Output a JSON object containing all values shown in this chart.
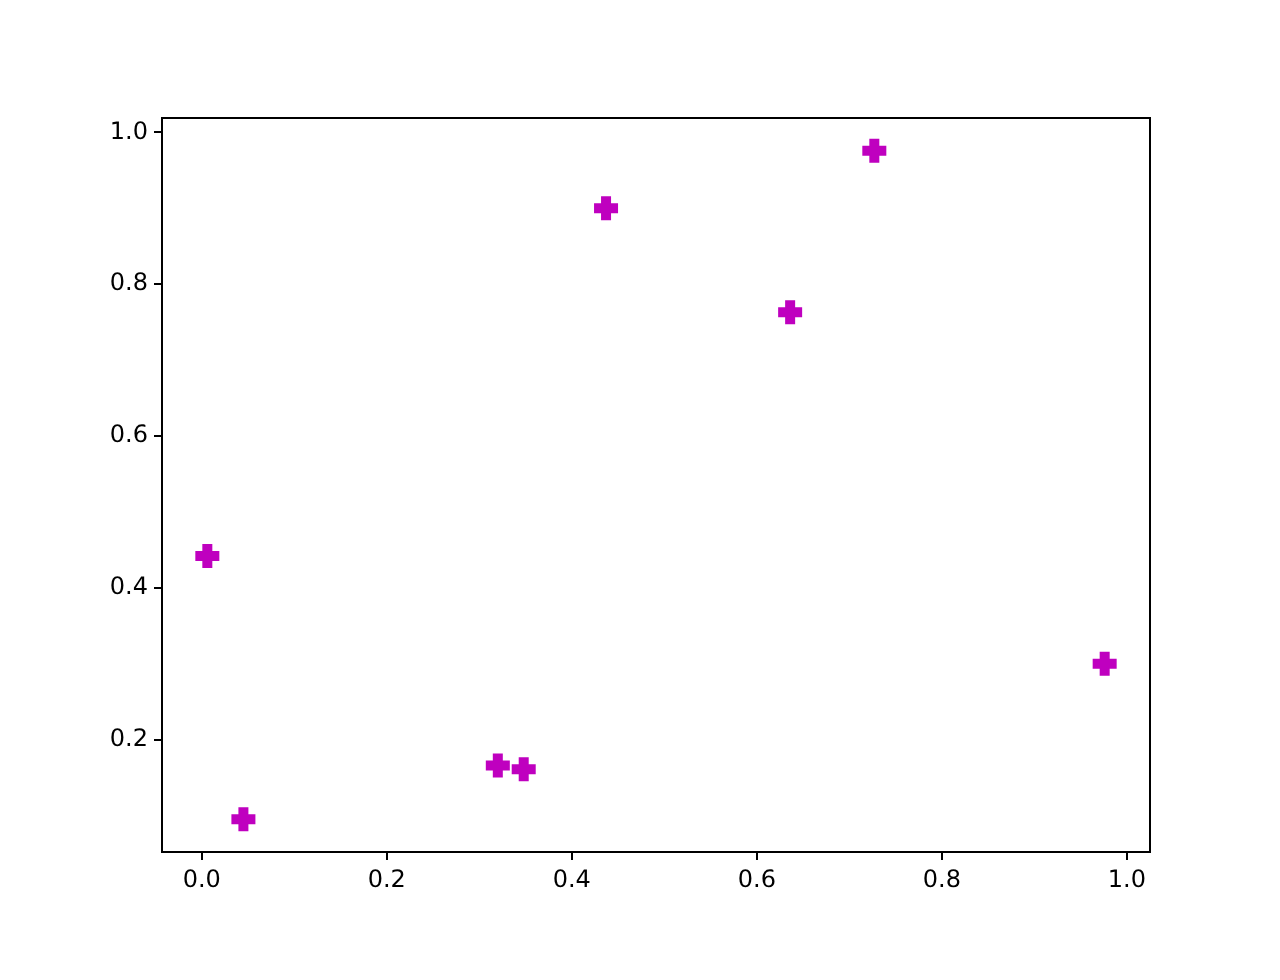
{
  "chart_data": {
    "type": "scatter",
    "x": [
      0.006,
      0.045,
      0.32,
      0.348,
      0.437,
      0.636,
      0.727,
      0.976
    ],
    "series": [
      {
        "color": "#bf00bf",
        "values": [
          0.442,
          0.095,
          0.166,
          0.161,
          0.9,
          0.763,
          0.976,
          0.3
        ]
      }
    ],
    "xlim": [
      -0.043,
      1.025
    ],
    "ylim": [
      0.052,
      1.019
    ],
    "xticks": [
      {
        "value": 0,
        "label": "0.0"
      },
      0.2,
      0.4,
      0.6,
      0.8,
      {
        "value": 1,
        "label": "1.0"
      }
    ],
    "yticks": [
      0.2,
      0.4,
      0.6,
      0.8,
      {
        "value": 1,
        "label": "1.0"
      }
    ],
    "marker": "cross",
    "grid": false,
    "legend": false
  }
}
